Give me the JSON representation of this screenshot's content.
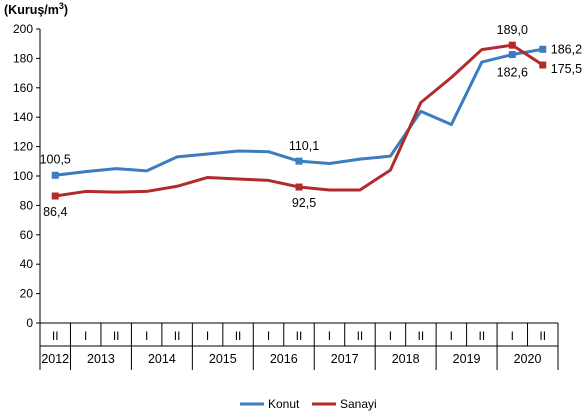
{
  "chart_data": {
    "type": "line",
    "unit_label": "(Kuruş/m",
    "unit_superscript": "3",
    "unit_close": ")",
    "periods": [
      "II",
      "I",
      "II",
      "I",
      "II",
      "I",
      "II",
      "I",
      "II",
      "I",
      "II",
      "I",
      "II",
      "I",
      "II",
      "I",
      "II"
    ],
    "years": [
      "2012",
      "2013",
      "2014",
      "2015",
      "2016",
      "2017",
      "2018",
      "2019",
      "2020"
    ],
    "y_ticks": [
      "0",
      "20",
      "40",
      "60",
      "80",
      "100",
      "120",
      "140",
      "160",
      "180",
      "200"
    ],
    "ylim": [
      0,
      200
    ],
    "grid": false,
    "legend_position": "bottom",
    "series": [
      {
        "name": "Konut",
        "color": "#3b7dbd",
        "values": [
          100.5,
          103.0,
          105.0,
          103.5,
          113.0,
          115.0,
          117.0,
          116.5,
          110.1,
          108.5,
          111.5,
          113.5,
          144.0,
          135.0,
          177.5,
          182.6,
          186.2
        ],
        "labels": [
          {
            "index": 0,
            "text": "100,5"
          },
          {
            "index": 8,
            "text": "110,1"
          },
          {
            "index": 15,
            "text": "182,6"
          },
          {
            "index": 16,
            "text": "186,2"
          }
        ]
      },
      {
        "name": "Sanayi",
        "color": "#b22b2b",
        "values": [
          86.4,
          89.5,
          89.0,
          89.5,
          93.0,
          99.0,
          98.0,
          97.0,
          92.5,
          90.5,
          90.5,
          104.0,
          150.0,
          167.0,
          186.0,
          189.0,
          175.5
        ],
        "labels": [
          {
            "index": 0,
            "text": "86,4"
          },
          {
            "index": 8,
            "text": "92,5"
          },
          {
            "index": 15,
            "text": "189,0"
          },
          {
            "index": 16,
            "text": "175,5"
          }
        ]
      }
    ]
  }
}
